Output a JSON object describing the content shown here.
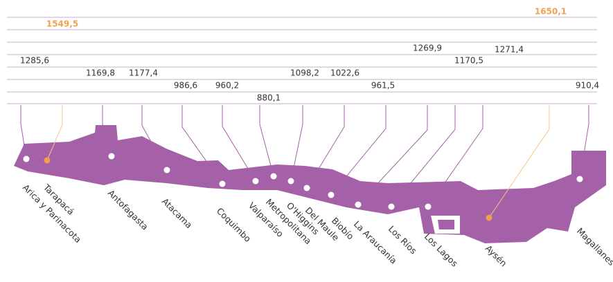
{
  "chart_data": {
    "type": "dot-map",
    "categories": [
      "Arica y Parinacota",
      "Tarapacá",
      "Antofagasta",
      "Atacama",
      "Coquimbo",
      "Valparaíso",
      "Metropolitana",
      "O'Higgins",
      "Del Maule",
      "Biobío",
      "La Araucanía",
      "Los Ríos",
      "Los Lagos",
      "Aysén",
      "Magallanes"
    ],
    "values": [
      1285.6,
      1549.5,
      1169.8,
      1177.4,
      986.6,
      960.2,
      880.1,
      1098.2,
      1022.6,
      961.5,
      1269.9,
      1170.5,
      1271.4,
      1650.1,
      910.4
    ],
    "value_labels": [
      "1285,6",
      "1549,5",
      "1169,8",
      "1177,4",
      "986,6",
      "960,2",
      "880,1",
      "1098,2",
      "1022,6",
      "961,5",
      "1269,9",
      "1170,5",
      "1271,4",
      "1650,1",
      "910,4"
    ],
    "colors": [
      "#a461a7",
      "#f0a050",
      "#a461a7",
      "#a461a7",
      "#a461a7",
      "#a461a7",
      "#a461a7",
      "#a461a7",
      "#a461a7",
      "#a461a7",
      "#a461a7",
      "#a461a7",
      "#a461a7",
      "#f0a050",
      "#a461a7"
    ]
  }
}
